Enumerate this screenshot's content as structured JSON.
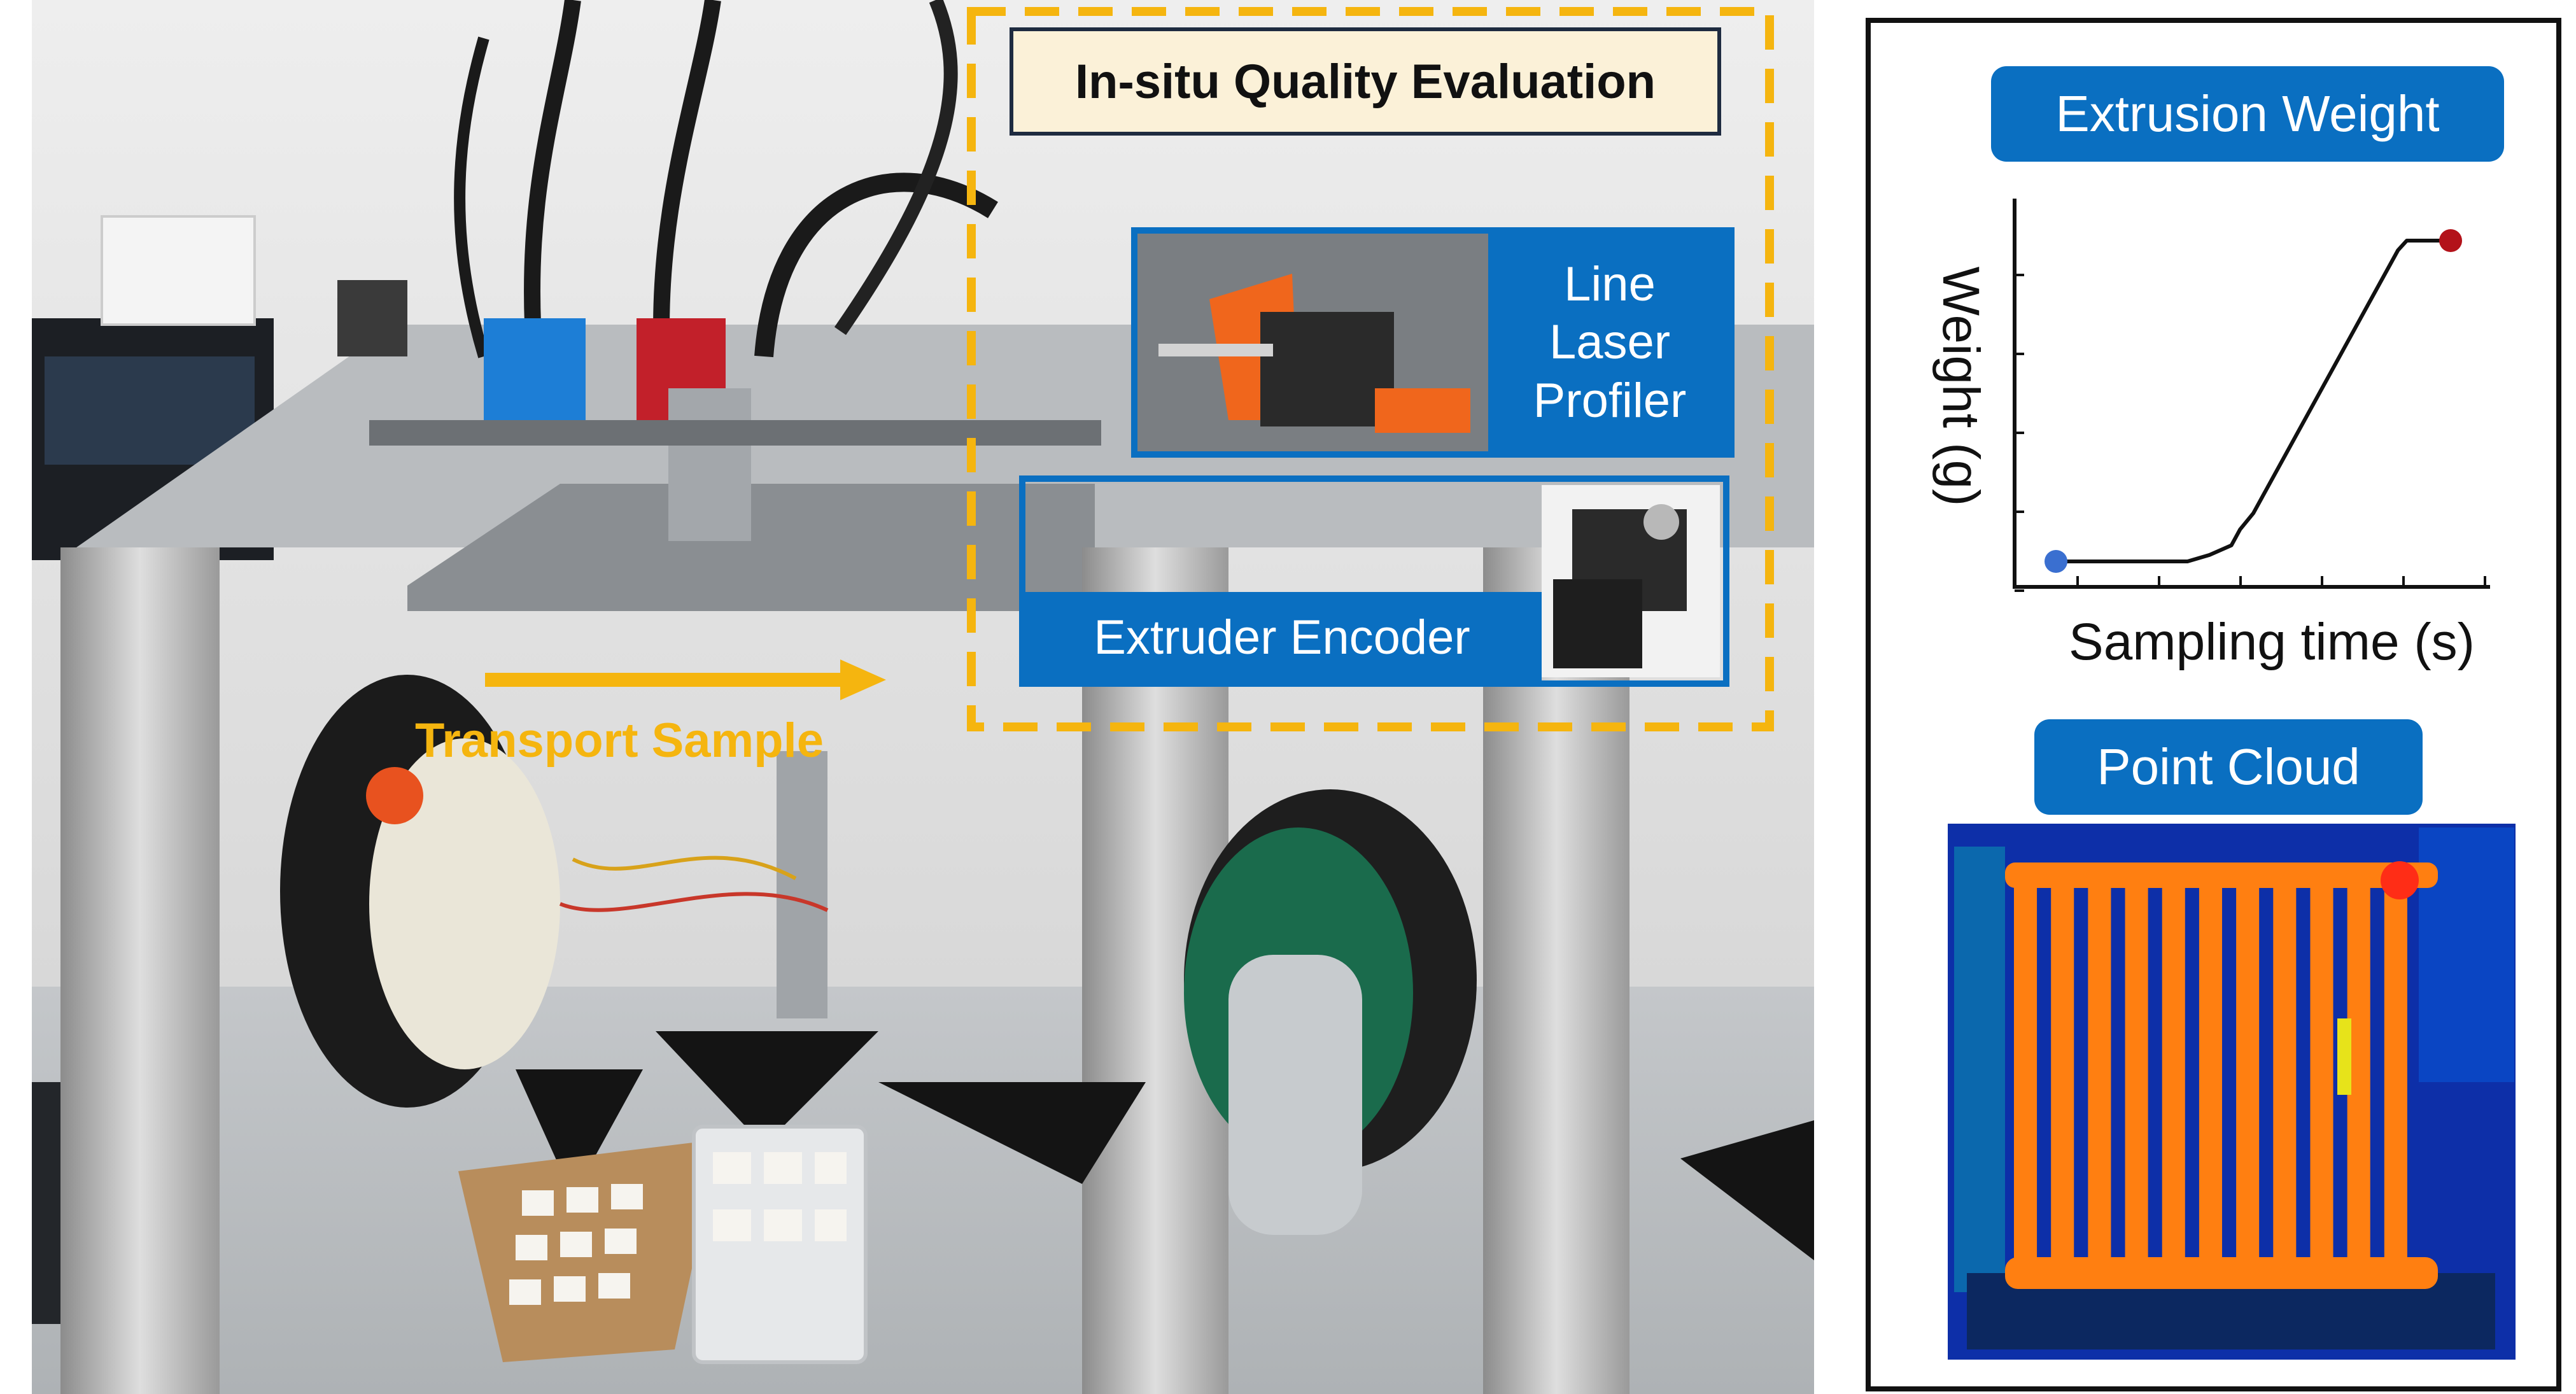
{
  "title": "In-situ Quality Evaluation",
  "labels": {
    "line_laser_profiler": [
      "Line",
      "Laser",
      "Profiler"
    ],
    "extruder_encoder": "Extruder Encoder",
    "transport_sample": "Transport Sample",
    "extrusion_weight": "Extrusion Weight",
    "point_cloud": "Point Cloud"
  },
  "chart_data": {
    "type": "line",
    "title": "Extrusion Weight",
    "xlabel": "Sampling time (s)",
    "ylabel": "Weight (g)",
    "x": [
      0,
      0.3,
      0.35,
      0.4,
      0.42,
      0.45,
      0.78,
      0.8,
      0.9
    ],
    "y": [
      0,
      0,
      0.02,
      0.05,
      0.1,
      0.15,
      0.97,
      1.0,
      1.0
    ],
    "start_marker_color": "#3a6fd0",
    "end_marker_color": "#b3121a",
    "line_color": "#111111"
  },
  "colors": {
    "accent_blue": "#0a6fc1",
    "dashed_frame": "#f5b50f",
    "title_bg": "#fbf1d8",
    "point_cloud_bg": "#0d2fa8",
    "point_cloud_print": "#ff7f11"
  }
}
